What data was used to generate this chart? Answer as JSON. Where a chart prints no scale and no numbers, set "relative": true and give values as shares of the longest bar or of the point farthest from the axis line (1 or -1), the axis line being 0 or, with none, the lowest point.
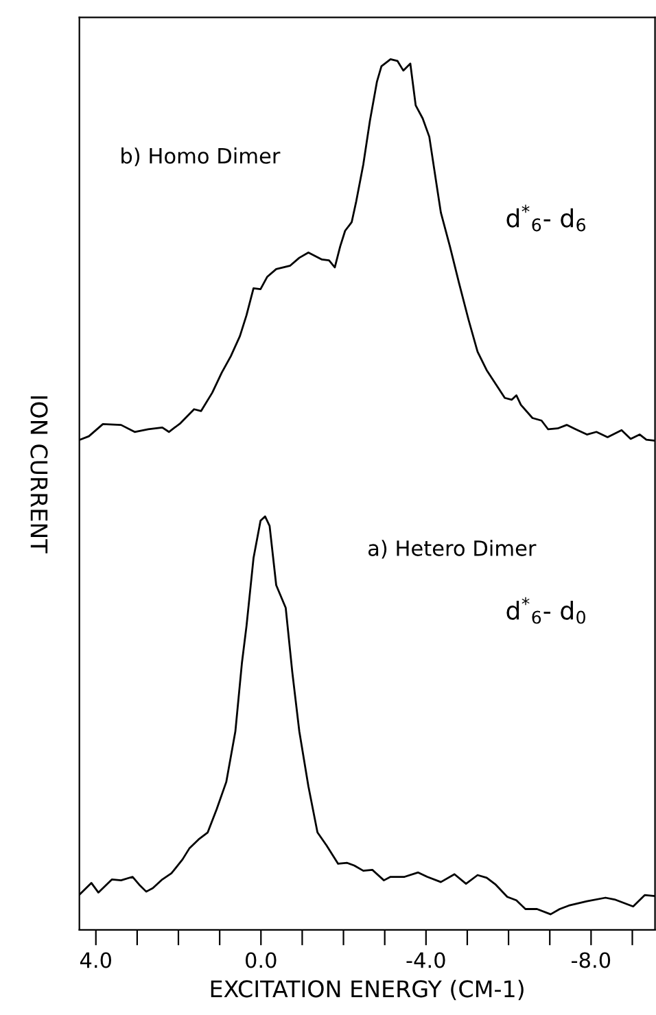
{
  "chart_data": {
    "type": "line",
    "relative": true,
    "xlabel": "EXCITATION ENERGY (CM-1)",
    "ylabel": "ION CURRENT",
    "xlim": [
      4.4,
      -9.55
    ],
    "xticks": [
      {
        "value": 4,
        "label": "4.0"
      },
      {
        "value": 3,
        "label": null
      },
      {
        "value": 2,
        "label": null
      },
      {
        "value": 1,
        "label": null
      },
      {
        "value": 0,
        "label": "0.0"
      },
      {
        "value": -1,
        "label": null
      },
      {
        "value": -2,
        "label": null
      },
      {
        "value": -3,
        "label": null
      },
      {
        "value": -4,
        "label": "-4.0"
      },
      {
        "value": -5,
        "label": null
      },
      {
        "value": -6,
        "label": null
      },
      {
        "value": -7,
        "label": null
      },
      {
        "value": -8,
        "label": "-8.0"
      },
      {
        "value": -9,
        "label": null
      }
    ],
    "tick_labels": "x",
    "grid": false,
    "legend": false,
    "marker": "none",
    "line_style": "solid",
    "series": [
      {
        "color": "#000000",
        "x": [
          4.39,
          4.17,
          3.83,
          3.39,
          3.06,
          2.73,
          2.39,
          2.23,
          1.95,
          1.62,
          1.45,
          1.18,
          0.95,
          0.73,
          0.51,
          0.35,
          0.18,
          0.01,
          -0.15,
          -0.37,
          -0.71,
          -0.93,
          -1.15,
          -1.48,
          -1.65,
          -1.79,
          -1.92,
          -2.04,
          -2.2,
          -2.31,
          -2.48,
          -2.64,
          -2.81,
          -2.92,
          -3.14,
          -3.31,
          -3.45,
          -3.62,
          -3.75,
          -3.92,
          -4.08,
          -4.25,
          -4.36,
          -4.58,
          -4.8,
          -5.03,
          -5.25,
          -5.47,
          -5.69,
          -5.91,
          -6.08,
          -6.19,
          -6.3,
          -6.58,
          -6.8,
          -6.96,
          -7.19,
          -7.41,
          -7.63,
          -7.9,
          -8.13,
          -8.4,
          -8.74,
          -8.96,
          -9.18,
          -9.34,
          -9.54
        ],
        "values": [
          0.563,
          0.567,
          0.581,
          0.58,
          0.572,
          0.575,
          0.577,
          0.572,
          0.582,
          0.598,
          0.596,
          0.617,
          0.64,
          0.659,
          0.682,
          0.706,
          0.737,
          0.736,
          0.75,
          0.759,
          0.763,
          0.772,
          0.778,
          0.77,
          0.769,
          0.761,
          0.785,
          0.803,
          0.813,
          0.837,
          0.879,
          0.929,
          0.974,
          0.992,
          1.0,
          0.998,
          0.987,
          0.995,
          0.947,
          0.932,
          0.911,
          0.858,
          0.824,
          0.785,
          0.743,
          0.701,
          0.664,
          0.643,
          0.627,
          0.611,
          0.609,
          0.614,
          0.603,
          0.588,
          0.585,
          0.575,
          0.576,
          0.58,
          0.575,
          0.569,
          0.572,
          0.566,
          0.574,
          0.564,
          0.569,
          0.563,
          0.562
        ]
      },
      {
        "color": "#000000",
        "x": [
          4.39,
          4.11,
          3.94,
          3.61,
          3.39,
          3.11,
          2.95,
          2.78,
          2.62,
          2.39,
          2.17,
          1.9,
          1.73,
          1.51,
          1.29,
          1.07,
          0.84,
          0.62,
          0.46,
          0.35,
          0.18,
          0.01,
          -0.1,
          -0.21,
          -0.37,
          -0.6,
          -0.76,
          -0.93,
          -1.15,
          -1.37,
          -1.59,
          -1.87,
          -2.09,
          -2.26,
          -2.48,
          -2.7,
          -2.98,
          -3.14,
          -3.48,
          -3.81,
          -4.03,
          -4.36,
          -4.69,
          -4.97,
          -5.25,
          -5.47,
          -5.69,
          -5.97,
          -6.19,
          -6.41,
          -6.69,
          -7.02,
          -7.24,
          -7.46,
          -7.9,
          -8.35,
          -8.57,
          -9.02,
          -9.3,
          -9.54
        ],
        "values": [
          0.041,
          0.054,
          0.043,
          0.058,
          0.057,
          0.061,
          0.052,
          0.044,
          0.048,
          0.058,
          0.065,
          0.081,
          0.094,
          0.104,
          0.112,
          0.139,
          0.17,
          0.228,
          0.307,
          0.349,
          0.427,
          0.47,
          0.475,
          0.464,
          0.396,
          0.37,
          0.296,
          0.228,
          0.165,
          0.112,
          0.097,
          0.076,
          0.077,
          0.074,
          0.068,
          0.069,
          0.057,
          0.061,
          0.061,
          0.066,
          0.061,
          0.055,
          0.064,
          0.053,
          0.063,
          0.06,
          0.052,
          0.038,
          0.034,
          0.024,
          0.024,
          0.018,
          0.024,
          0.028,
          0.033,
          0.037,
          0.035,
          0.027,
          0.04,
          0.039
        ]
      }
    ],
    "annotations": [
      "b) Homo Dimer",
      "d$^{*}$$_{6}$- d$_{6}$",
      "a) Hetero Dimer",
      "d$^{*}$$_{6}$- d$_{0}$"
    ]
  }
}
